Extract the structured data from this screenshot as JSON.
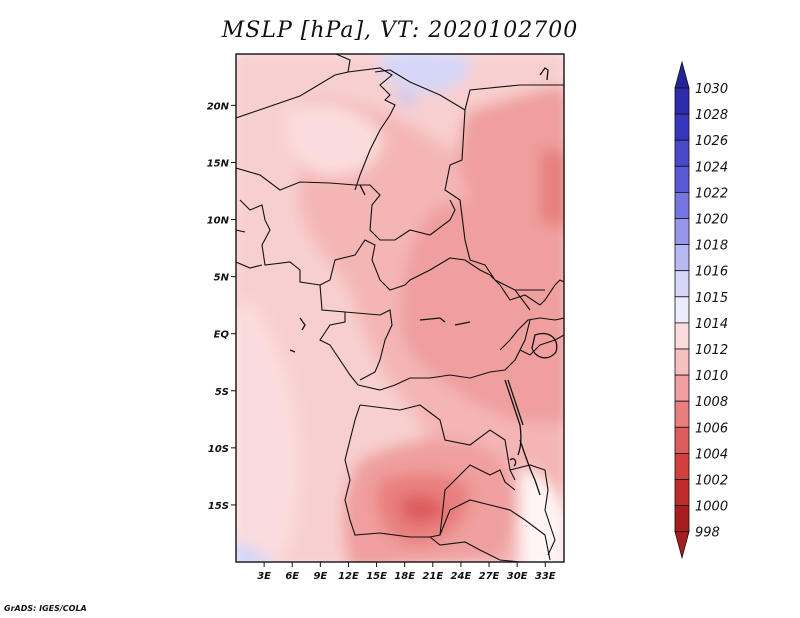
{
  "title": "MSLP [hPa], VT: 2020102700",
  "credit": "GrADS: IGES/COLA",
  "lat_axis": {
    "labels": [
      "20N",
      "15N",
      "10N",
      "5N",
      "EQ",
      "5S",
      "10S",
      "15S"
    ],
    "values": [
      20,
      15,
      10,
      5,
      0,
      -5,
      -10,
      -15
    ],
    "range": [
      -20,
      24.5
    ]
  },
  "lon_axis": {
    "labels": [
      "3E",
      "6E",
      "9E",
      "12E",
      "15E",
      "18E",
      "21E",
      "24E",
      "27E",
      "30E",
      "33E"
    ],
    "values": [
      3,
      6,
      9,
      12,
      15,
      18,
      21,
      24,
      27,
      30,
      33
    ],
    "range": [
      0,
      35
    ]
  },
  "colorbar": {
    "levels": [
      "1030",
      "1028",
      "1026",
      "1024",
      "1022",
      "1020",
      "1018",
      "1016",
      "1015",
      "1014",
      "1012",
      "1010",
      "1008",
      "1006",
      "1004",
      "1002",
      "1000",
      "998"
    ],
    "colors": [
      "#24249a",
      "#2c2cac",
      "#3737bd",
      "#4949c9",
      "#5a5ad6",
      "#7676e0",
      "#9696ea",
      "#b8b8f2",
      "#d6d6f8",
      "#ecebfb",
      "#fbdcdc",
      "#f6c0bf",
      "#ef9f9e",
      "#e87f7e",
      "#de5c5b",
      "#d13f3f",
      "#bf2a2a",
      "#a81e1e"
    ]
  },
  "field_colors": {
    "pale": "#fbdcdc",
    "light": "#f8cfcf",
    "mid": "#f4b6b5",
    "dark": "#ef9f9e",
    "darker": "#e87f7e",
    "darkest": "#de5c5b",
    "white": "#fff5f5",
    "blue": "#d6d6f8",
    "blue2": "#c4c4f4"
  }
}
